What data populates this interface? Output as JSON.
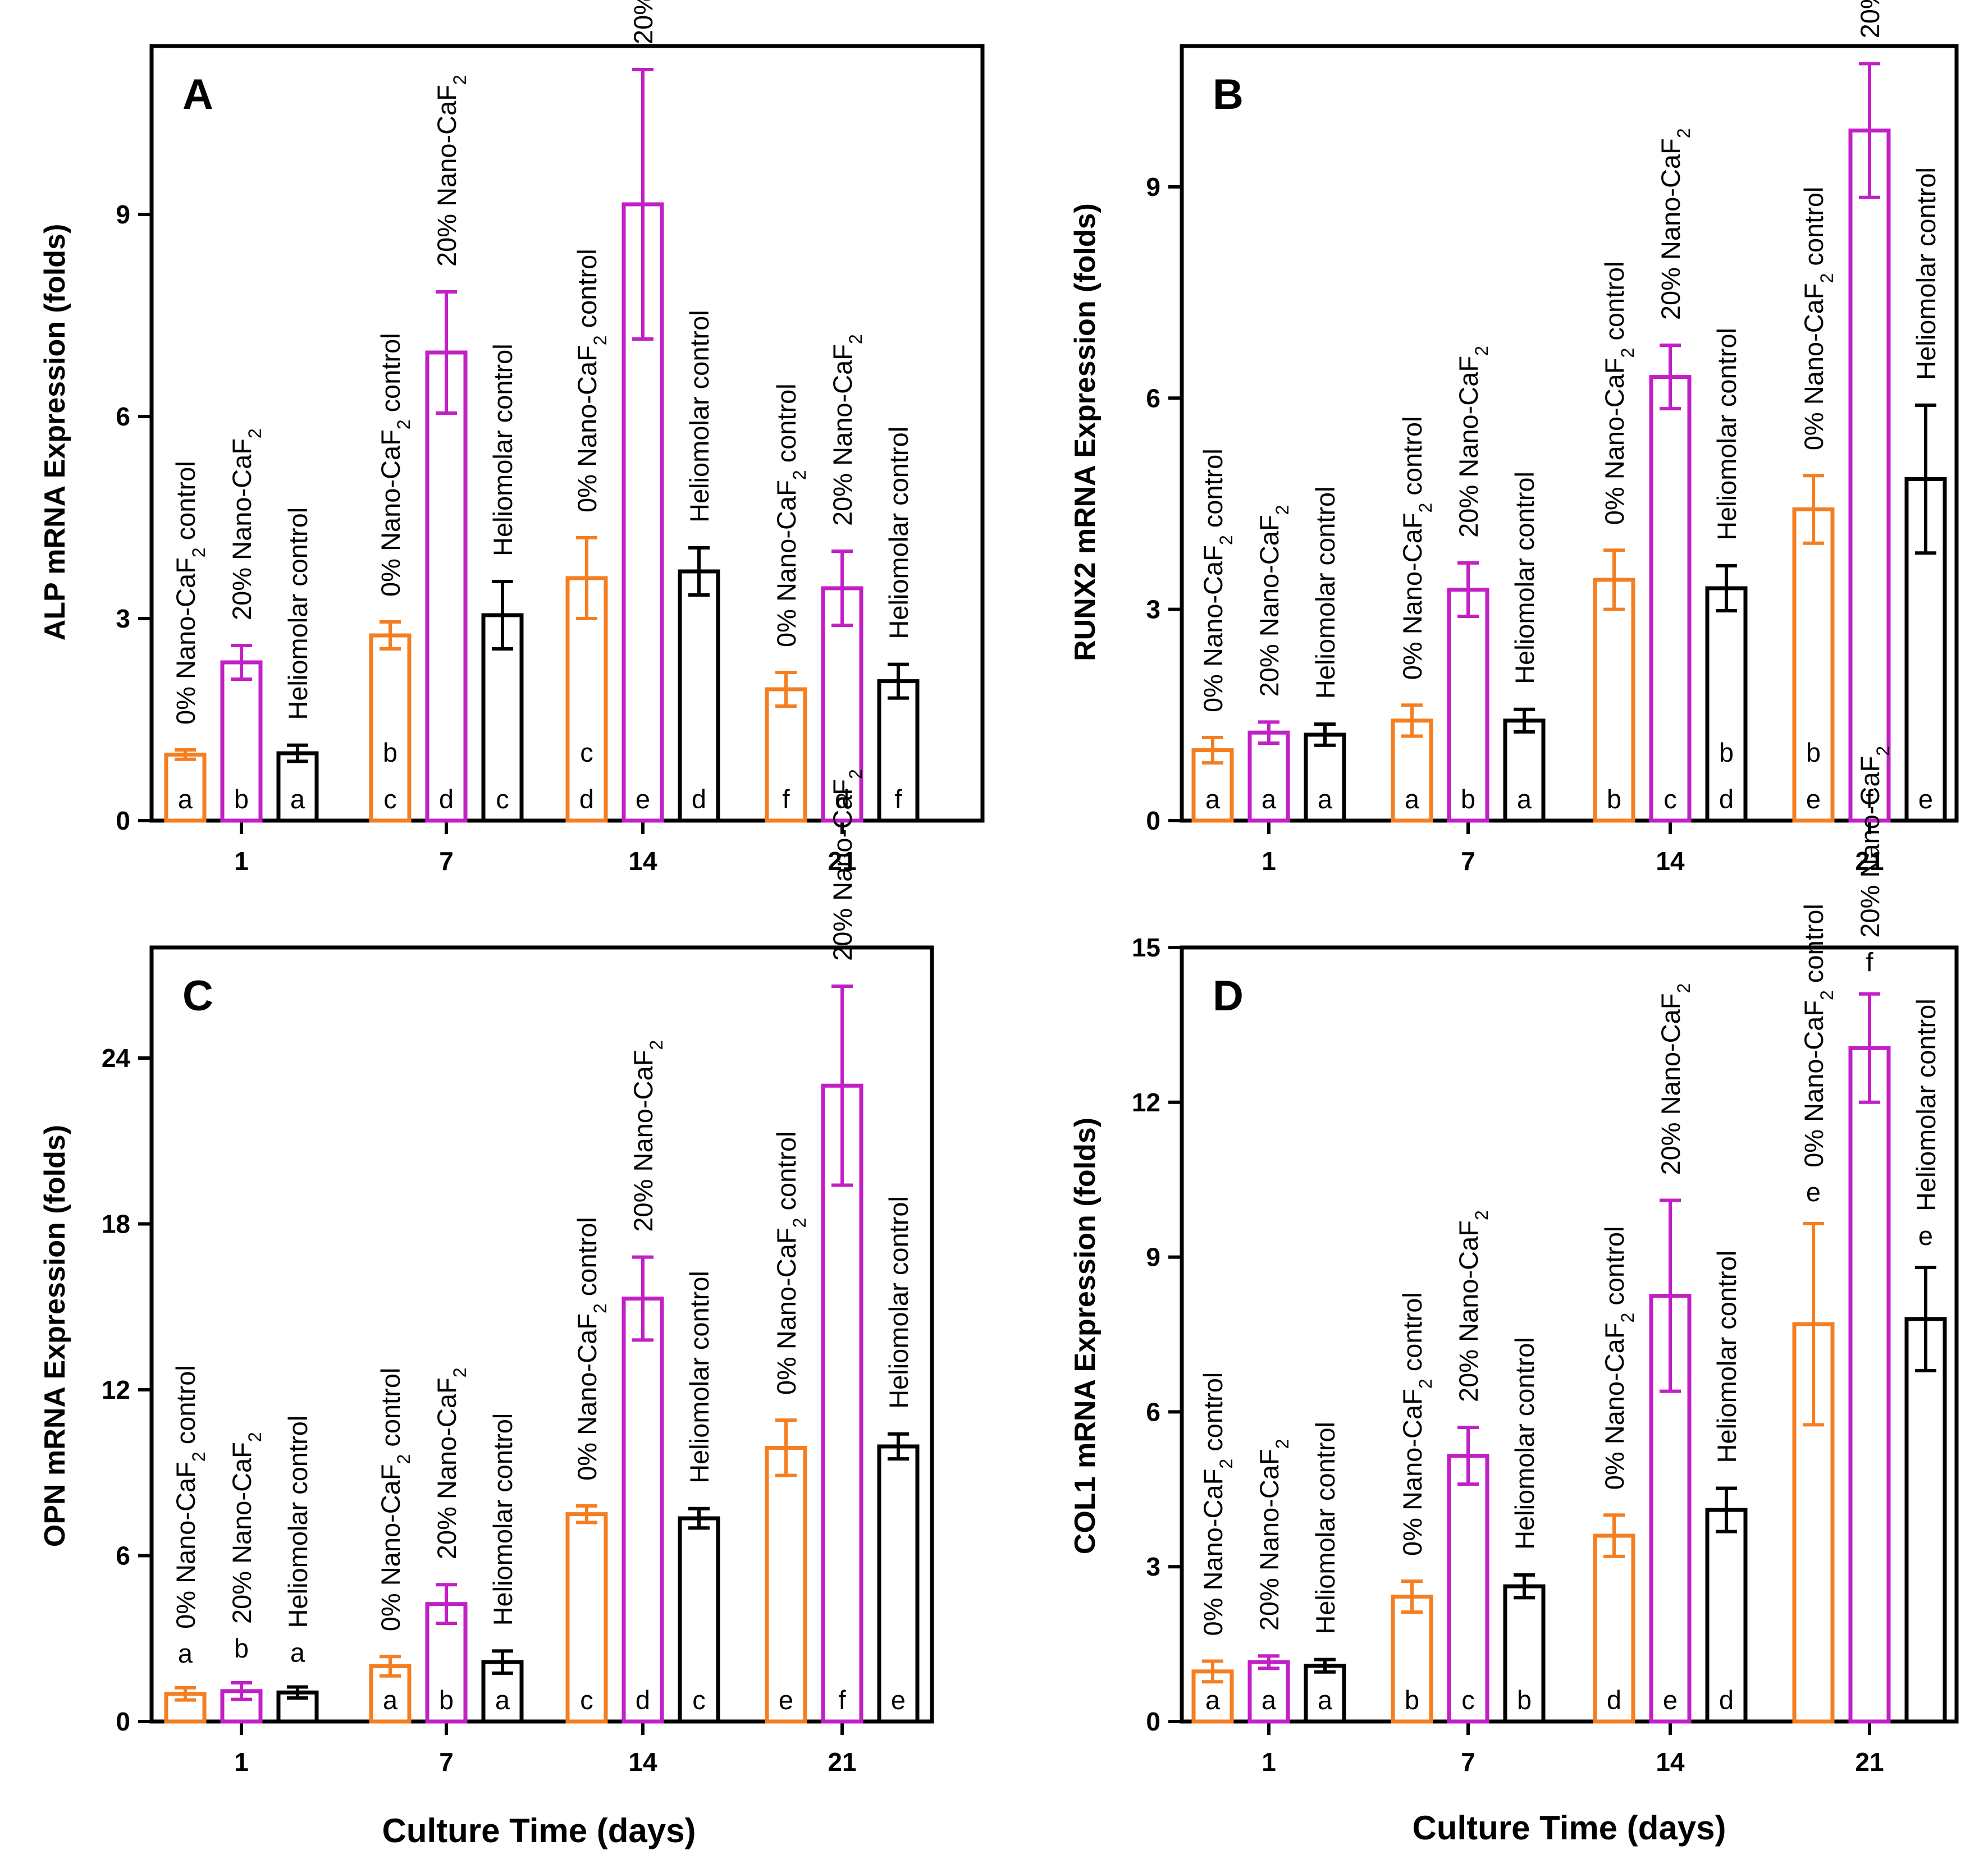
{
  "figure": {
    "xlabel": "Culture Time (days)",
    "groups": [
      "0% Nano-CaF₂ control",
      "20% Nano-CaF₂",
      "Heliomolar control"
    ],
    "colors": {
      "group0": "#f57e20",
      "group1": "#c21fc6",
      "group2": "#000000",
      "axis": "#000000"
    }
  },
  "chart_data": [
    {
      "type": "bar",
      "panel": "A",
      "title": "A",
      "ylabel": "ALP mRNA Expression (folds)",
      "xlabel": "Culture Time (days)",
      "categories": [
        "1",
        "7",
        "14",
        "21"
      ],
      "ylim": [
        0,
        11.5
      ],
      "yticks": [
        0,
        3,
        6,
        9
      ],
      "series": [
        {
          "name": "0% Nano-CaF₂ control",
          "values": [
            0.98,
            2.75,
            3.6,
            1.95
          ],
          "errors": [
            0.07,
            0.2,
            0.6,
            0.25
          ],
          "letters": [
            "a",
            "c",
            "d",
            "f"
          ],
          "upper_letters": [
            "",
            "b",
            "c",
            ""
          ]
        },
        {
          "name": "20% Nano-CaF₂",
          "values": [
            2.35,
            6.95,
            9.15,
            3.45
          ],
          "errors": [
            0.25,
            0.9,
            2.0,
            0.55
          ],
          "letters": [
            "b",
            "d",
            "e",
            "d"
          ],
          "upper_letters": [
            "",
            "",
            "",
            ""
          ]
        },
        {
          "name": "Heliomolar control",
          "values": [
            1.0,
            3.05,
            3.7,
            2.07
          ],
          "errors": [
            0.12,
            0.5,
            0.35,
            0.25
          ],
          "letters": [
            "a",
            "c",
            "d",
            "f"
          ],
          "upper_letters": [
            "",
            "",
            "",
            ""
          ]
        }
      ]
    },
    {
      "type": "bar",
      "panel": "B",
      "title": "B",
      "ylabel": "RUNX2 mRNA Expression (folds)",
      "xlabel": "Culture Time (days)",
      "categories": [
        "1",
        "7",
        "14",
        "21"
      ],
      "ylim": [
        0,
        11
      ],
      "yticks": [
        0,
        3,
        6,
        9
      ],
      "series": [
        {
          "name": "0% Nano-CaF₂ control",
          "values": [
            1.0,
            1.42,
            3.42,
            4.42
          ],
          "errors": [
            0.18,
            0.22,
            0.42,
            0.48
          ],
          "letters": [
            "a",
            "a",
            "b",
            "e"
          ],
          "upper_letters": [
            "",
            "",
            "",
            "b"
          ]
        },
        {
          "name": "20% Nano-CaF₂",
          "values": [
            1.25,
            3.28,
            6.3,
            9.8
          ],
          "errors": [
            0.15,
            0.38,
            0.45,
            0.95
          ],
          "letters": [
            "a",
            "b",
            "c",
            "f"
          ],
          "upper_letters": [
            "",
            "",
            "",
            ""
          ]
        },
        {
          "name": "Heliomolar control",
          "values": [
            1.22,
            1.42,
            3.3,
            4.85
          ],
          "errors": [
            0.15,
            0.16,
            0.32,
            1.05
          ],
          "letters": [
            "a",
            "a",
            "d",
            "e"
          ],
          "upper_letters": [
            "",
            "",
            "b",
            ""
          ]
        }
      ]
    },
    {
      "type": "bar",
      "panel": "C",
      "title": "C",
      "ylabel": "OPN mRNA Expression (folds)",
      "xlabel": "Culture Time (days)",
      "categories": [
        "1",
        "7",
        "14",
        "21"
      ],
      "ylim": [
        0,
        28
      ],
      "yticks": [
        0,
        6,
        12,
        18,
        24
      ],
      "series": [
        {
          "name": "0% Nano-CaF₂ control",
          "values": [
            1.0,
            2.0,
            7.5,
            9.9
          ],
          "errors": [
            0.22,
            0.35,
            0.3,
            1.0
          ],
          "letters": [
            "",
            "a",
            "c",
            "e"
          ],
          "upper_letters": [
            "a",
            "",
            "",
            ""
          ]
        },
        {
          "name": "20% Nano-CaF₂",
          "values": [
            1.1,
            4.25,
            15.3,
            23.0
          ],
          "errors": [
            0.3,
            0.7,
            1.5,
            3.6
          ],
          "letters": [
            "",
            "b",
            "d",
            "f"
          ],
          "upper_letters": [
            "b",
            "",
            "",
            ""
          ]
        },
        {
          "name": "Heliomolar control",
          "values": [
            1.05,
            2.15,
            7.35,
            9.95
          ],
          "errors": [
            0.2,
            0.4,
            0.35,
            0.45
          ],
          "letters": [
            "",
            "a",
            "c",
            "e"
          ],
          "upper_letters": [
            "a",
            "",
            "",
            ""
          ]
        }
      ]
    },
    {
      "type": "bar",
      "panel": "D",
      "title": "D",
      "ylabel": "COL1 mRNA Expression (folds)",
      "xlabel": "Culture Time (days)",
      "categories": [
        "1",
        "7",
        "14",
        "21"
      ],
      "ylim": [
        0,
        15
      ],
      "yticks": [
        0,
        3,
        6,
        9,
        12,
        15
      ],
      "series": [
        {
          "name": "0% Nano-CaF₂ control",
          "values": [
            0.97,
            2.42,
            3.6,
            7.7
          ],
          "errors": [
            0.2,
            0.3,
            0.4,
            1.95
          ],
          "letters": [
            "a",
            "b",
            "d",
            ""
          ],
          "upper_letters": [
            "",
            "",
            "",
            "e"
          ]
        },
        {
          "name": "20% Nano-CaF₂",
          "values": [
            1.15,
            5.15,
            8.25,
            13.05
          ],
          "errors": [
            0.12,
            0.55,
            1.85,
            1.05
          ],
          "letters": [
            "a",
            "c",
            "e",
            ""
          ],
          "upper_letters": [
            "",
            "",
            "",
            "f"
          ]
        },
        {
          "name": "Heliomolar control",
          "values": [
            1.08,
            2.62,
            4.1,
            7.8
          ],
          "errors": [
            0.12,
            0.22,
            0.42,
            1.0
          ],
          "letters": [
            "a",
            "b",
            "d",
            ""
          ],
          "upper_letters": [
            "",
            "",
            "",
            "e"
          ]
        }
      ]
    }
  ]
}
